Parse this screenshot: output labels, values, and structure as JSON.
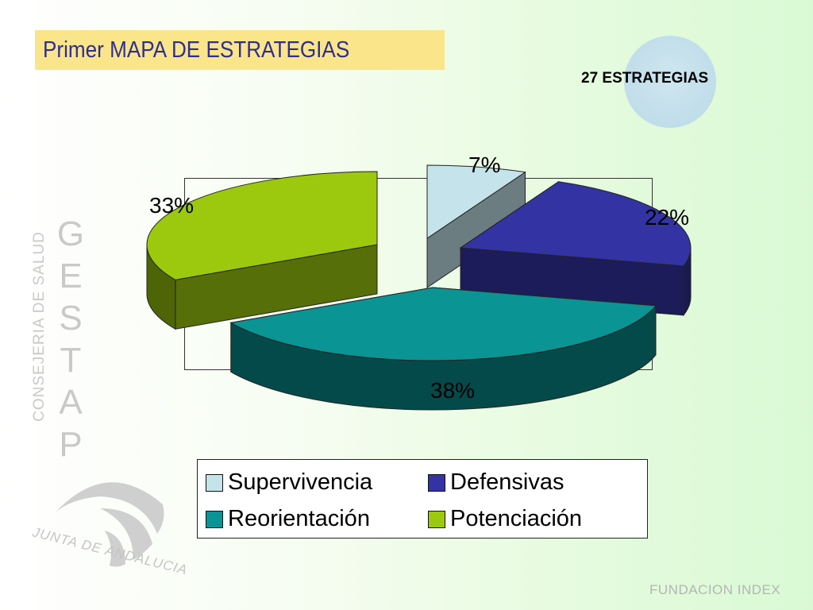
{
  "slide": {
    "title": "Primer MAPA DE ESTRATEGIAS",
    "subtitle": "27 ESTRATEGIAS",
    "footer": "FUNDACION INDEX",
    "watermark_vertical_text": "CONSEJERIA DE SALUD",
    "watermark_letters": [
      "G",
      "E",
      "S",
      "T",
      "A",
      "P"
    ],
    "logo_text": "JUNTA DE ANDALUCIA"
  },
  "chart_data": {
    "type": "pie",
    "style": "3d-exploded",
    "title": "",
    "categories": [
      "Supervivencia",
      "Defensivas",
      "Reorientación",
      "Potenciación"
    ],
    "values": [
      7,
      22,
      38,
      33
    ],
    "labels": [
      "7%",
      "22%",
      "38%",
      "33%"
    ],
    "colors": {
      "Supervivencia": "#c5e3ea",
      "Defensivas": "#3333a4",
      "Reorientación": "#0a9494",
      "Potenciación": "#9cc90e"
    },
    "legend": {
      "position": "bottom",
      "columns": 2,
      "items": [
        "Supervivencia",
        "Defensivas",
        "Reorientación",
        "Potenciación"
      ]
    }
  },
  "colors": {
    "title_background": "#fbe58a",
    "title_text": "#2e2e8e",
    "accent_circle": "#c3dfeb"
  }
}
